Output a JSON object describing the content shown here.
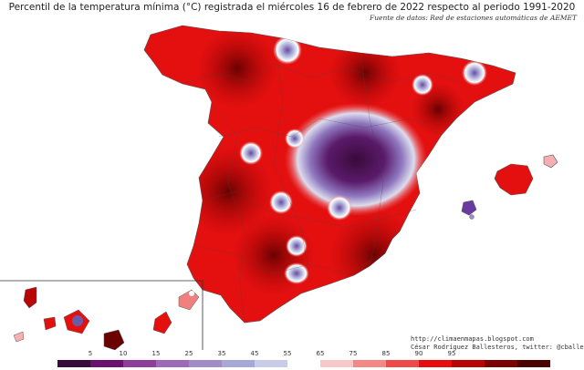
{
  "title": "Percentil de la temperatura mínima (°C) registrada el miércoles 16 de febrero de 2022 respecto al periodo 1991-2020",
  "source": "Fuente de datos: Red de estaciones automáticas de AEMET",
  "credit": {
    "url": "http://climaenmapas.blogspot.com",
    "author": "César Rodríguez Ballesteros, twitter: @cballesteros"
  },
  "legend": {
    "ticks": [
      "5",
      "10",
      "15",
      "25",
      "35",
      "45",
      "55",
      "65",
      "75",
      "85",
      "90",
      "95"
    ],
    "colors": [
      "#3a0a3a",
      "#6a1070",
      "#8e3d9c",
      "#9c6ab8",
      "#a08dc8",
      "#a6a8d6",
      "#c9cce8",
      "#ffffff",
      "#f7c8c8",
      "#f28888",
      "#ee4a4a",
      "#e80c0c",
      "#b80606",
      "#7a0303",
      "#4a0000"
    ]
  }
}
